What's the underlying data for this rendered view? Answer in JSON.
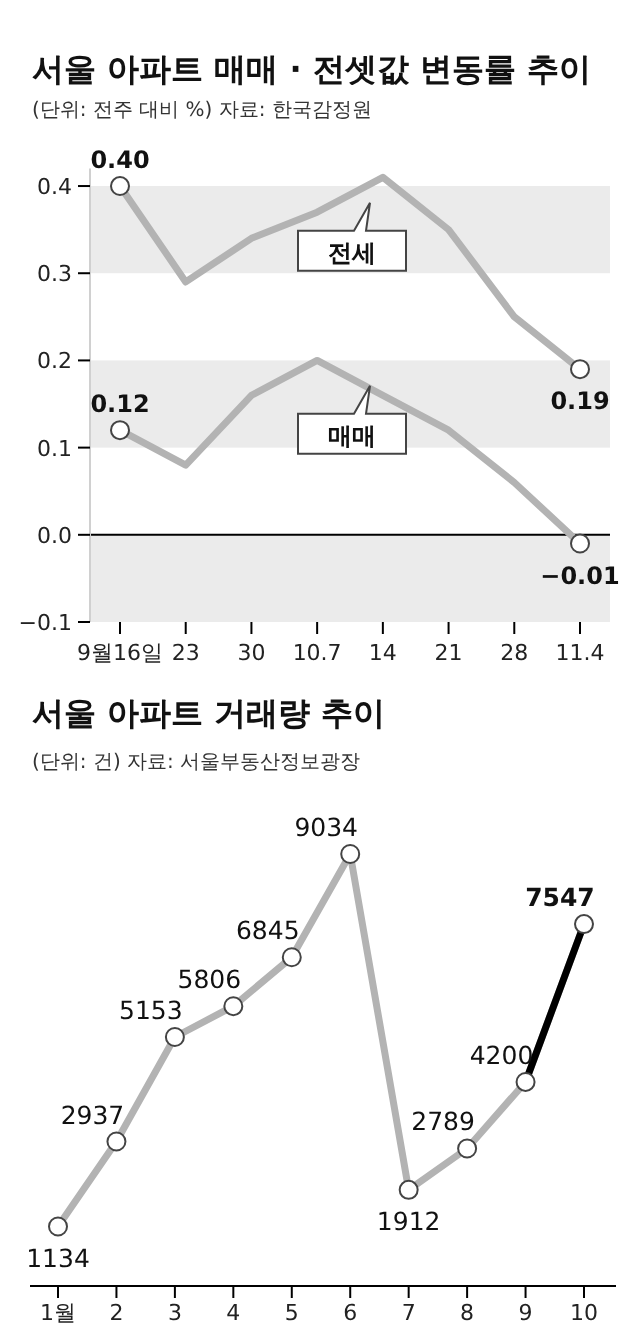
{
  "chart_data": [
    {
      "type": "line",
      "title": "서울 아파트 매매 · 전셋값 변동률 추이",
      "subtitle": "(단위: 전주 대비 %)   자료: 한국감정원",
      "categories": [
        "9월16일",
        "23",
        "30",
        "10.7",
        "14",
        "21",
        "28",
        "11.4"
      ],
      "ylim": [
        -0.1,
        0.42
      ],
      "yticks": [
        {
          "value": -0.1,
          "label": "−0.1"
        },
        {
          "value": 0,
          "label": "0.0"
        },
        {
          "value": 0.1,
          "label": "0.1"
        },
        {
          "value": 0.2,
          "label": "0.2"
        },
        {
          "value": 0.3,
          "label": "0.3"
        },
        0.4
      ],
      "line_style": "solid",
      "bands": [
        {
          "axis": "y",
          "from": 0.3,
          "to": 0.4,
          "color": "#ebebeb"
        },
        {
          "axis": "y",
          "from": 0.1,
          "to": 0.2,
          "color": "#ebebeb"
        },
        {
          "axis": "y",
          "from": -0.1,
          "to": 0,
          "color": "#ebebeb"
        }
      ],
      "ref_lines": [
        {
          "axis": "y",
          "value": 0,
          "color": "#000000"
        }
      ],
      "series": [
        {
          "name": "전세",
          "color": "#b3b3b3",
          "values": [
            0.4,
            0.29,
            0.34,
            0.37,
            0.41,
            0.35,
            0.25,
            0.19
          ],
          "value_labels": [
            "0.40",
            null,
            null,
            null,
            null,
            null,
            null,
            "0.19"
          ]
        },
        {
          "name": "매매",
          "color": "#b3b3b3",
          "values": [
            0.12,
            0.08,
            0.16,
            0.2,
            0.16,
            0.12,
            0.06,
            -0.01
          ],
          "value_labels": [
            "0.12",
            null,
            null,
            null,
            null,
            null,
            null,
            "−0.01"
          ]
        }
      ]
    },
    {
      "type": "line",
      "title": "서울 아파트 거래량 추이",
      "subtitle": "(단위: 건)  자료: 서울부동산정보광장",
      "categories": [
        "1월",
        "2",
        "3",
        "4",
        "5",
        "6",
        "7",
        "8",
        "9",
        "10"
      ],
      "marker": "circle",
      "line_style": "solid",
      "data_labels": true,
      "series": [
        {
          "color": "#b3b3b3",
          "colors": [
            "#b3b3b3",
            "#b3b3b3",
            "#b3b3b3",
            "#b3b3b3",
            "#b3b3b3",
            "#b3b3b3",
            "#b3b3b3",
            "#b3b3b3",
            "#b3b3b3",
            "#000000"
          ],
          "values": [
            1134,
            2937,
            5153,
            5806,
            6845,
            9034,
            1912,
            2789,
            4200,
            7547
          ]
        }
      ]
    }
  ]
}
